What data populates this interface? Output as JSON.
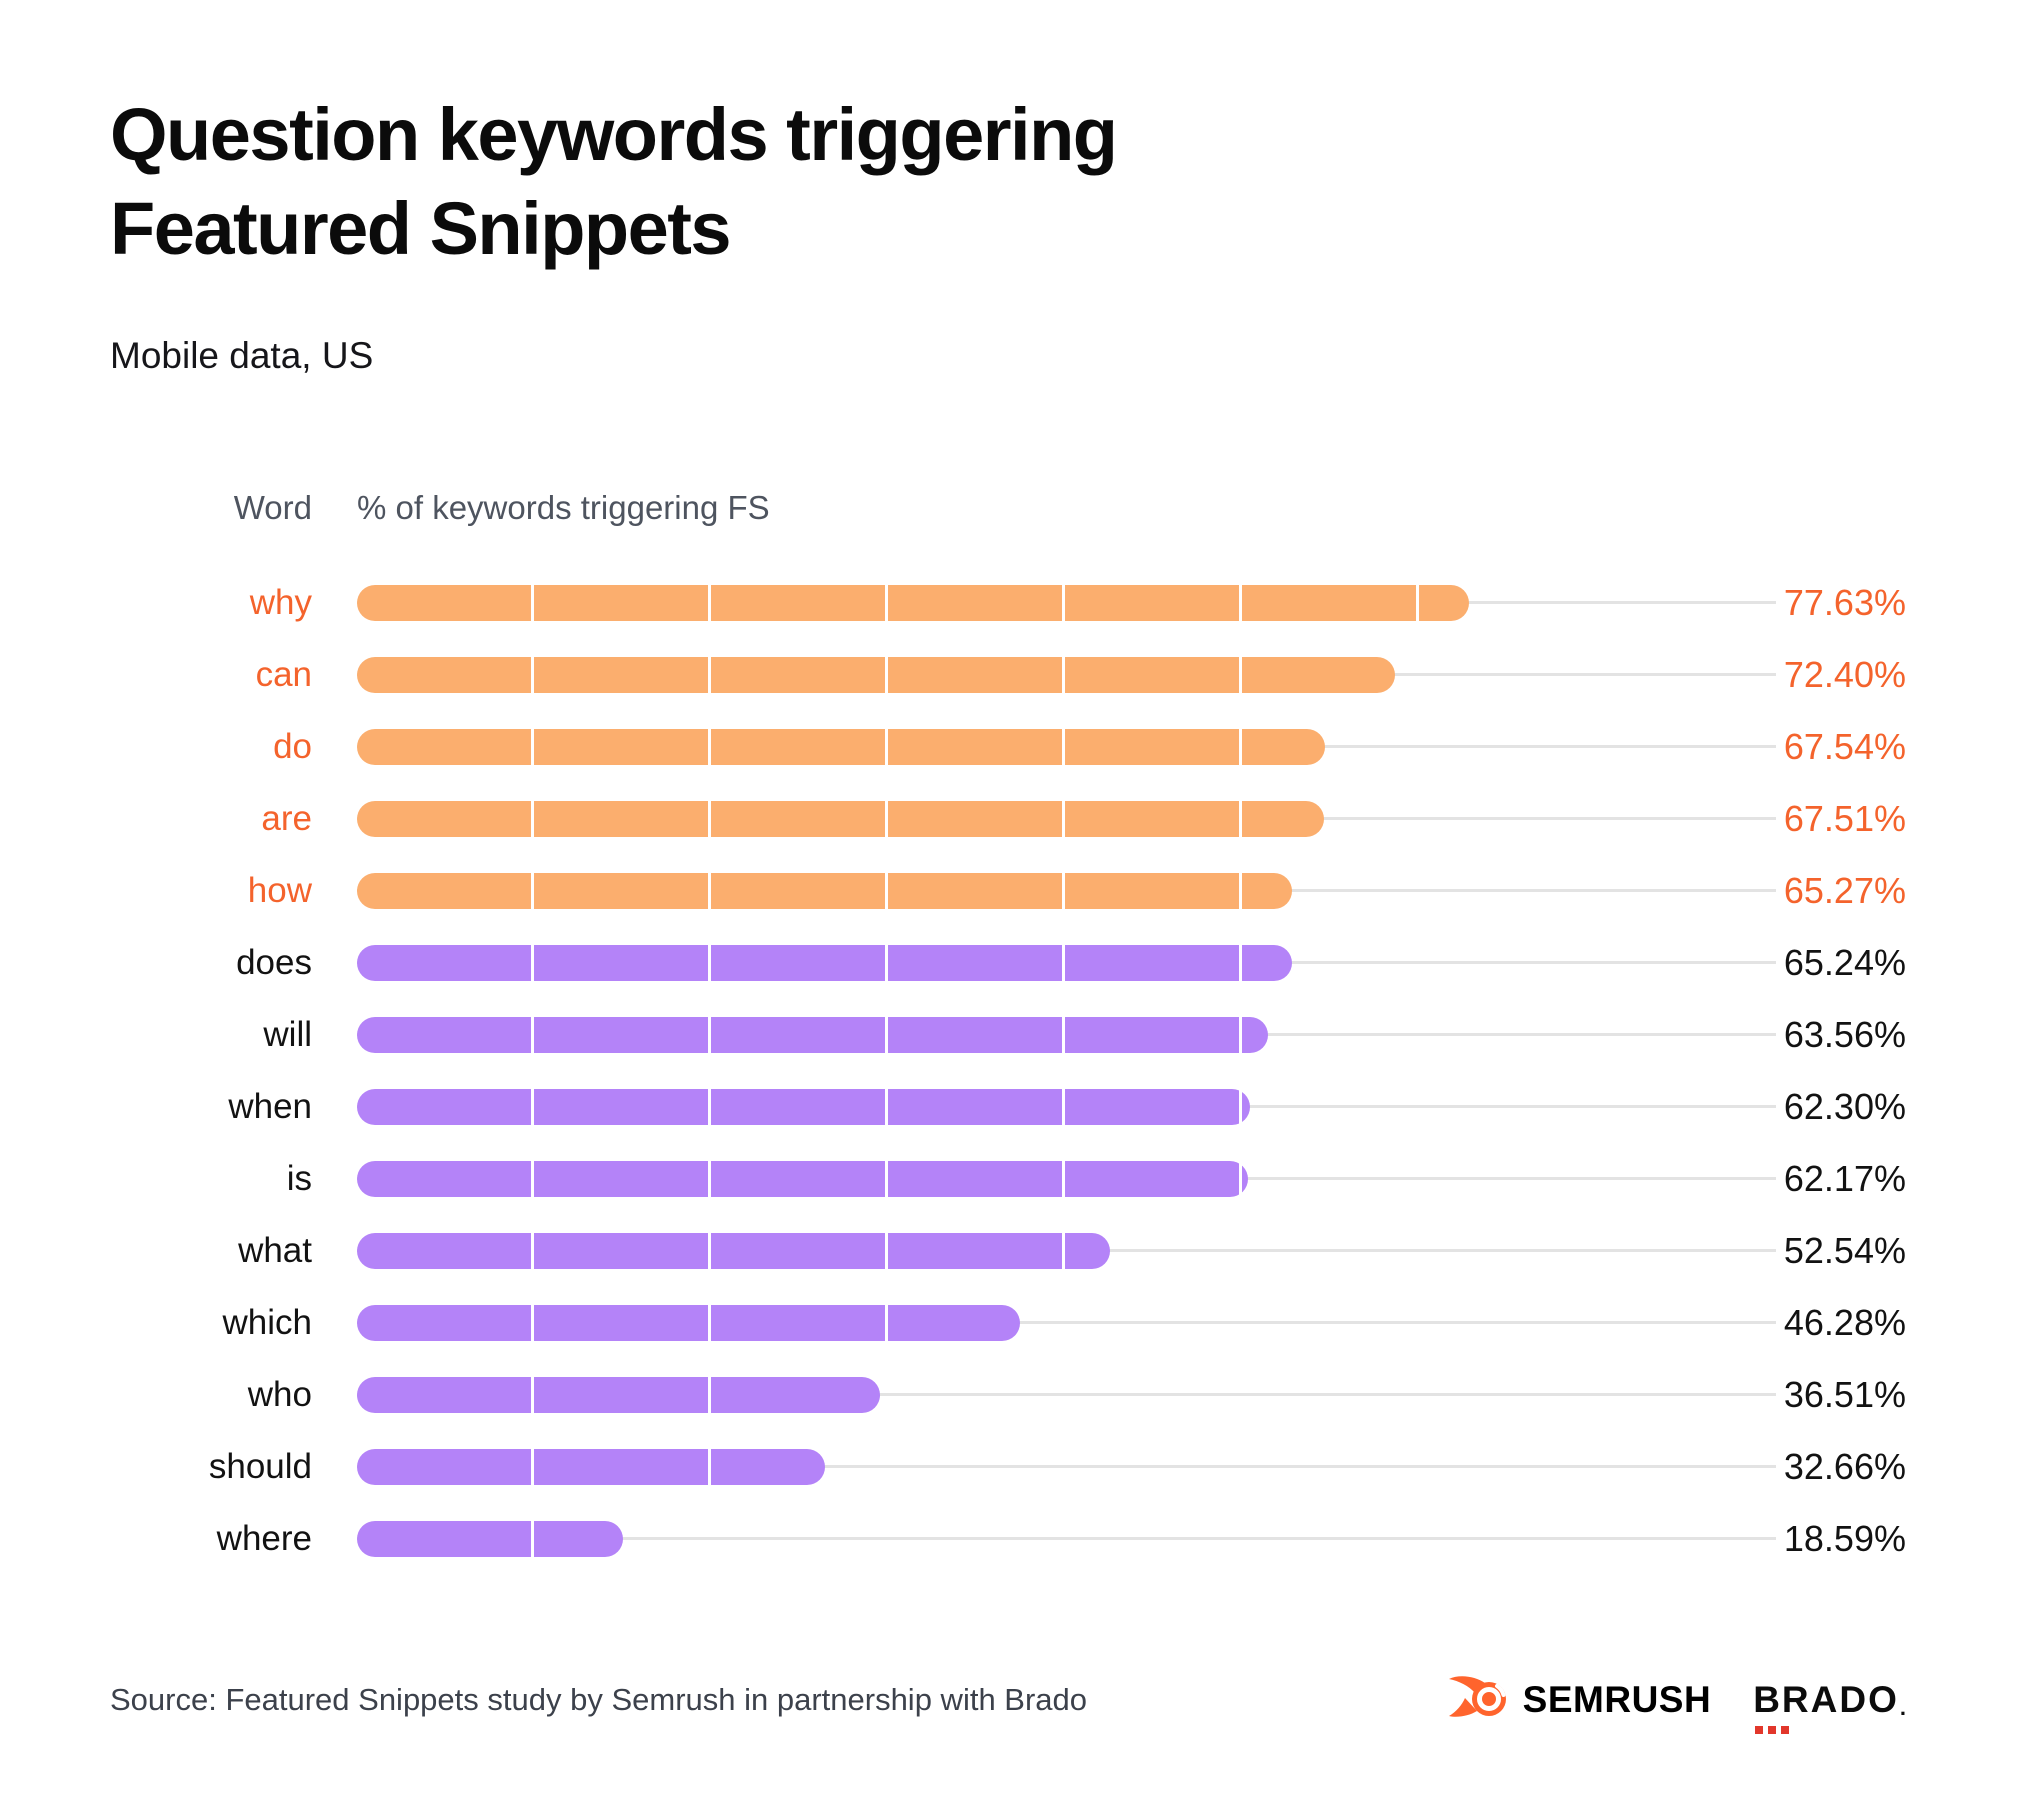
{
  "header": {
    "title": "Question keywords triggering Featured Snippets",
    "subtitle": "Mobile data, US"
  },
  "table": {
    "col_word": "Word",
    "col_value": "% of keywords triggering FS"
  },
  "chart_data": {
    "type": "bar",
    "orientation": "horizontal",
    "title": "Question keywords triggering Featured Snippets",
    "subtitle": "Mobile data, US",
    "xlabel": "% of keywords triggering FS",
    "ylabel": "Word",
    "xlim": [
      0,
      100
    ],
    "grid": false,
    "categories": [
      "why",
      "can",
      "do",
      "are",
      "how",
      "does",
      "will",
      "when",
      "is",
      "what",
      "which",
      "who",
      "should",
      "where"
    ],
    "values": [
      77.63,
      72.4,
      67.54,
      67.51,
      65.27,
      65.24,
      63.56,
      62.3,
      62.17,
      52.54,
      46.28,
      36.51,
      32.66,
      18.59
    ],
    "value_labels": [
      "77.63%",
      "72.40%",
      "67.54%",
      "67.51%",
      "65.27%",
      "65.24%",
      "63.56%",
      "62.30%",
      "62.17%",
      "52.54%",
      "46.28%",
      "36.51%",
      "32.66%",
      "18.59%"
    ],
    "highlighted": [
      true,
      true,
      true,
      true,
      true,
      false,
      false,
      false,
      false,
      false,
      false,
      false,
      false,
      false
    ],
    "colors": {
      "highlight_bar": "#fbae6e",
      "default_bar": "#b483f8",
      "highlight_text": "#f4632c",
      "default_text": "#121212",
      "track": "#e3e3e3"
    }
  },
  "footer": {
    "source": "Source: Featured Snippets study by Semrush in partnership with Brado",
    "logos": {
      "semrush": "SEMRUSH",
      "brado": "BRADO",
      "brado_suffix": "."
    }
  }
}
